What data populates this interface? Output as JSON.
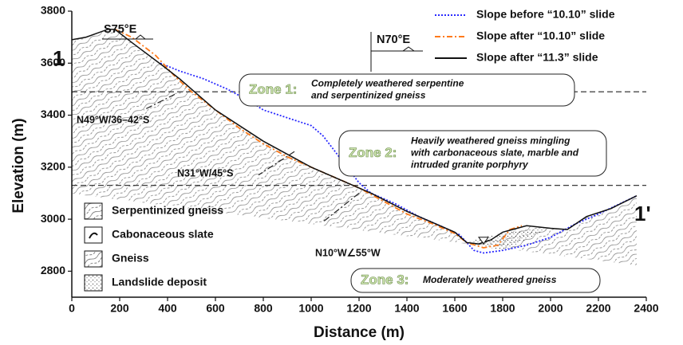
{
  "chart_data": {
    "type": "line",
    "x_label": "Distance (m)",
    "y_label": "Elevation (m)",
    "xlim": [
      0,
      2400
    ],
    "ylim": [
      2700,
      3800
    ],
    "xticks": [
      0,
      200,
      400,
      600,
      800,
      1000,
      1200,
      1400,
      1600,
      1800,
      2000,
      2200,
      2400
    ],
    "yticks": [
      2800,
      3000,
      3200,
      3400,
      3600,
      3800
    ],
    "zone_boundaries": [
      3490,
      3130
    ],
    "series": [
      {
        "name": "Slope  before  “10.10”  slide",
        "color": "#2a2aff",
        "dash": "dot",
        "x": [
          370,
          450,
          550,
          650,
          750,
          800,
          900,
          1000,
          1050,
          1100,
          1150,
          1200,
          1250,
          1350,
          1450,
          1550,
          1620,
          1680,
          1720,
          1800,
          1900,
          2000,
          2100,
          2200,
          2360
        ],
        "values": [
          3600,
          3570,
          3540,
          3500,
          3450,
          3420,
          3390,
          3360,
          3320,
          3260,
          3200,
          3140,
          3100,
          3060,
          3010,
          2970,
          2940,
          2880,
          2870,
          2880,
          2900,
          2930,
          2980,
          3020,
          3090
        ]
      },
      {
        "name": "Slope  after  “10.10”  slide",
        "color": "#ff7a1a",
        "dash": "dashdot",
        "x": [
          180,
          250,
          350,
          430,
          500,
          600,
          700,
          800,
          900,
          1000,
          1100,
          1200,
          1300,
          1400,
          1500,
          1600,
          1650,
          1720,
          1780,
          1830,
          1880
        ],
        "values": [
          3730,
          3700,
          3630,
          3550,
          3490,
          3420,
          3350,
          3290,
          3240,
          3200,
          3160,
          3120,
          3070,
          3020,
          2985,
          2945,
          2910,
          2890,
          2900,
          2960,
          2975
        ]
      },
      {
        "name": "Slope  after  “11.3”  slide",
        "color": "#111111",
        "dash": "solid",
        "x": [
          0,
          60,
          150,
          180,
          250,
          380,
          450,
          600,
          800,
          1000,
          1150,
          1250,
          1400,
          1500,
          1600,
          1650,
          1700,
          1750,
          1800,
          1900,
          2000,
          2070,
          2150,
          2250,
          2360
        ],
        "values": [
          3690,
          3700,
          3730,
          3730,
          3680,
          3590,
          3540,
          3420,
          3300,
          3200,
          3140,
          3100,
          3030,
          2990,
          2950,
          2910,
          2905,
          2920,
          2950,
          2975,
          2965,
          2960,
          3010,
          3040,
          3090
        ]
      }
    ],
    "annotations": [
      "1",
      "1'",
      "S75°E",
      "N70°E",
      "N49°W/36–42°S",
      "N31°W/45°S",
      "N10°W∠55°W"
    ],
    "zones": [
      {
        "label": "Zone 1:",
        "text": [
          "Completely weathered serpentine",
          "and serpentinized gneiss"
        ]
      },
      {
        "label": "Zone 2:",
        "text": [
          "Heavily weathered gneiss mingling",
          "with carbonaceous slate, marble and",
          "intruded granite porphyry"
        ]
      },
      {
        "label": "Zone 3:",
        "text": [
          "Moderately weathered gneiss"
        ]
      }
    ],
    "lithology": [
      "Serpentinized gneiss",
      "Cabonaceous slate",
      "Gneiss",
      "Landslide deposit"
    ]
  }
}
